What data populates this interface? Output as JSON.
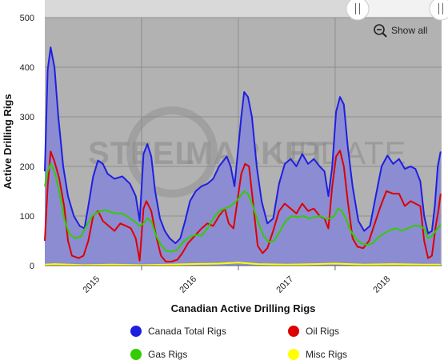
{
  "chart_data": {
    "type": "area",
    "title": "Canadian Active Drilling Rigs",
    "ylabel": "Active Drilling Rigs",
    "xlabel": "",
    "ylim": [
      0,
      500
    ],
    "yticks": [
      0,
      100,
      200,
      300,
      400,
      500
    ],
    "xlim": [
      2014.9,
      2019.0
    ],
    "xticks": [
      {
        "label": "2015",
        "x": 2015.4
      },
      {
        "label": "2016",
        "x": 2016.4
      },
      {
        "label": "2017",
        "x": 2017.4
      },
      {
        "label": "2018",
        "x": 2018.4
      }
    ],
    "x_gridlines": [
      2015.9,
      2016.9,
      2017.9
    ],
    "grid": true,
    "legend_position": "bottom",
    "series": [
      {
        "name": "Canada Total Rigs",
        "color": "#1f1fe0",
        "fill": true,
        "points": [
          [
            2014.9,
            190
          ],
          [
            2014.93,
            395
          ],
          [
            2014.96,
            440
          ],
          [
            2015.0,
            400
          ],
          [
            2015.04,
            300
          ],
          [
            2015.09,
            200
          ],
          [
            2015.14,
            140
          ],
          [
            2015.2,
            100
          ],
          [
            2015.26,
            80
          ],
          [
            2015.31,
            75
          ],
          [
            2015.35,
            120
          ],
          [
            2015.4,
            180
          ],
          [
            2015.45,
            212
          ],
          [
            2015.5,
            205
          ],
          [
            2015.55,
            185
          ],
          [
            2015.62,
            175
          ],
          [
            2015.7,
            180
          ],
          [
            2015.78,
            165
          ],
          [
            2015.84,
            140
          ],
          [
            2015.88,
            90
          ],
          [
            2015.92,
            225
          ],
          [
            2015.96,
            245
          ],
          [
            2016.0,
            220
          ],
          [
            2016.04,
            150
          ],
          [
            2016.09,
            95
          ],
          [
            2016.14,
            70
          ],
          [
            2016.19,
            55
          ],
          [
            2016.25,
            45
          ],
          [
            2016.3,
            55
          ],
          [
            2016.35,
            90
          ],
          [
            2016.4,
            130
          ],
          [
            2016.46,
            150
          ],
          [
            2016.52,
            160
          ],
          [
            2016.58,
            165
          ],
          [
            2016.64,
            175
          ],
          [
            2016.7,
            200
          ],
          [
            2016.78,
            220
          ],
          [
            2016.82,
            200
          ],
          [
            2016.86,
            160
          ],
          [
            2016.9,
            240
          ],
          [
            2016.93,
            300
          ],
          [
            2016.96,
            350
          ],
          [
            2017.0,
            340
          ],
          [
            2017.04,
            300
          ],
          [
            2017.09,
            200
          ],
          [
            2017.14,
            130
          ],
          [
            2017.2,
            85
          ],
          [
            2017.26,
            95
          ],
          [
            2017.32,
            165
          ],
          [
            2017.38,
            205
          ],
          [
            2017.44,
            215
          ],
          [
            2017.5,
            200
          ],
          [
            2017.56,
            225
          ],
          [
            2017.62,
            205
          ],
          [
            2017.68,
            215
          ],
          [
            2017.74,
            200
          ],
          [
            2017.79,
            190
          ],
          [
            2017.83,
            140
          ],
          [
            2017.87,
            200
          ],
          [
            2017.91,
            310
          ],
          [
            2017.95,
            340
          ],
          [
            2017.99,
            325
          ],
          [
            2018.03,
            240
          ],
          [
            2018.08,
            160
          ],
          [
            2018.14,
            90
          ],
          [
            2018.2,
            70
          ],
          [
            2018.26,
            80
          ],
          [
            2018.32,
            140
          ],
          [
            2018.38,
            200
          ],
          [
            2018.44,
            222
          ],
          [
            2018.5,
            205
          ],
          [
            2018.56,
            215
          ],
          [
            2018.62,
            195
          ],
          [
            2018.68,
            200
          ],
          [
            2018.73,
            195
          ],
          [
            2018.78,
            170
          ],
          [
            2018.82,
            100
          ],
          [
            2018.86,
            65
          ],
          [
            2018.9,
            70
          ],
          [
            2018.93,
            120
          ],
          [
            2018.96,
            200
          ],
          [
            2018.99,
            230
          ]
        ]
      },
      {
        "name": "Oil Rigs",
        "color": "#dd0000",
        "fill": false,
        "points": [
          [
            2014.9,
            50
          ],
          [
            2014.93,
            160
          ],
          [
            2014.96,
            230
          ],
          [
            2015.0,
            210
          ],
          [
            2015.05,
            175
          ],
          [
            2015.1,
            120
          ],
          [
            2015.14,
            50
          ],
          [
            2015.18,
            20
          ],
          [
            2015.25,
            15
          ],
          [
            2015.3,
            20
          ],
          [
            2015.35,
            50
          ],
          [
            2015.4,
            100
          ],
          [
            2015.45,
            110
          ],
          [
            2015.5,
            90
          ],
          [
            2015.56,
            80
          ],
          [
            2015.62,
            70
          ],
          [
            2015.68,
            85
          ],
          [
            2015.74,
            80
          ],
          [
            2015.79,
            75
          ],
          [
            2015.84,
            55
          ],
          [
            2015.88,
            10
          ],
          [
            2015.92,
            115
          ],
          [
            2015.95,
            130
          ],
          [
            2016.0,
            110
          ],
          [
            2016.05,
            60
          ],
          [
            2016.1,
            20
          ],
          [
            2016.15,
            8
          ],
          [
            2016.21,
            8
          ],
          [
            2016.27,
            12
          ],
          [
            2016.32,
            25
          ],
          [
            2016.38,
            45
          ],
          [
            2016.45,
            60
          ],
          [
            2016.52,
            75
          ],
          [
            2016.58,
            85
          ],
          [
            2016.64,
            80
          ],
          [
            2016.7,
            100
          ],
          [
            2016.76,
            115
          ],
          [
            2016.8,
            85
          ],
          [
            2016.85,
            75
          ],
          [
            2016.89,
            130
          ],
          [
            2016.93,
            185
          ],
          [
            2016.97,
            205
          ],
          [
            2017.01,
            200
          ],
          [
            2017.05,
            130
          ],
          [
            2017.1,
            40
          ],
          [
            2017.15,
            25
          ],
          [
            2017.2,
            35
          ],
          [
            2017.26,
            70
          ],
          [
            2017.32,
            110
          ],
          [
            2017.38,
            125
          ],
          [
            2017.44,
            115
          ],
          [
            2017.5,
            105
          ],
          [
            2017.56,
            125
          ],
          [
            2017.62,
            110
          ],
          [
            2017.68,
            115
          ],
          [
            2017.74,
            100
          ],
          [
            2017.79,
            95
          ],
          [
            2017.83,
            75
          ],
          [
            2017.87,
            160
          ],
          [
            2017.91,
            220
          ],
          [
            2017.95,
            232
          ],
          [
            2017.99,
            200
          ],
          [
            2018.03,
            130
          ],
          [
            2018.08,
            55
          ],
          [
            2018.13,
            38
          ],
          [
            2018.19,
            35
          ],
          [
            2018.25,
            50
          ],
          [
            2018.31,
            85
          ],
          [
            2018.37,
            120
          ],
          [
            2018.43,
            150
          ],
          [
            2018.5,
            145
          ],
          [
            2018.56,
            145
          ],
          [
            2018.62,
            120
          ],
          [
            2018.68,
            130
          ],
          [
            2018.73,
            125
          ],
          [
            2018.78,
            120
          ],
          [
            2018.82,
            50
          ],
          [
            2018.86,
            15
          ],
          [
            2018.9,
            20
          ],
          [
            2018.94,
            80
          ],
          [
            2018.97,
            115
          ],
          [
            2018.99,
            145
          ]
        ]
      },
      {
        "name": "Gas Rigs",
        "color": "#33cc00",
        "fill": false,
        "points": [
          [
            2014.9,
            160
          ],
          [
            2014.93,
            190
          ],
          [
            2014.96,
            205
          ],
          [
            2015.0,
            190
          ],
          [
            2015.05,
            150
          ],
          [
            2015.1,
            95
          ],
          [
            2015.15,
            65
          ],
          [
            2015.21,
            55
          ],
          [
            2015.27,
            58
          ],
          [
            2015.33,
            80
          ],
          [
            2015.39,
            100
          ],
          [
            2015.45,
            108
          ],
          [
            2015.52,
            112
          ],
          [
            2015.58,
            108
          ],
          [
            2015.64,
            105
          ],
          [
            2015.7,
            105
          ],
          [
            2015.76,
            98
          ],
          [
            2015.82,
            90
          ],
          [
            2015.88,
            80
          ],
          [
            2015.92,
            85
          ],
          [
            2015.96,
            95
          ],
          [
            2016.0,
            90
          ],
          [
            2016.05,
            60
          ],
          [
            2016.1,
            42
          ],
          [
            2016.15,
            30
          ],
          [
            2016.21,
            28
          ],
          [
            2016.27,
            32
          ],
          [
            2016.33,
            48
          ],
          [
            2016.4,
            58
          ],
          [
            2016.46,
            62
          ],
          [
            2016.52,
            60
          ],
          [
            2016.58,
            75
          ],
          [
            2016.64,
            95
          ],
          [
            2016.7,
            110
          ],
          [
            2016.76,
            115
          ],
          [
            2016.82,
            120
          ],
          [
            2016.88,
            130
          ],
          [
            2016.92,
            140
          ],
          [
            2016.96,
            150
          ],
          [
            2017.0,
            145
          ],
          [
            2017.05,
            120
          ],
          [
            2017.1,
            90
          ],
          [
            2017.16,
            60
          ],
          [
            2017.21,
            48
          ],
          [
            2017.27,
            50
          ],
          [
            2017.33,
            70
          ],
          [
            2017.39,
            90
          ],
          [
            2017.45,
            100
          ],
          [
            2017.51,
            98
          ],
          [
            2017.57,
            100
          ],
          [
            2017.63,
            95
          ],
          [
            2017.69,
            98
          ],
          [
            2017.75,
            100
          ],
          [
            2017.8,
            95
          ],
          [
            2017.85,
            95
          ],
          [
            2017.89,
            100
          ],
          [
            2017.93,
            115
          ],
          [
            2017.97,
            110
          ],
          [
            2018.01,
            95
          ],
          [
            2018.06,
            70
          ],
          [
            2018.11,
            55
          ],
          [
            2018.17,
            45
          ],
          [
            2018.23,
            42
          ],
          [
            2018.29,
            45
          ],
          [
            2018.35,
            58
          ],
          [
            2018.41,
            65
          ],
          [
            2018.47,
            72
          ],
          [
            2018.53,
            75
          ],
          [
            2018.59,
            70
          ],
          [
            2018.65,
            75
          ],
          [
            2018.71,
            80
          ],
          [
            2018.77,
            80
          ],
          [
            2018.82,
            75
          ],
          [
            2018.86,
            55
          ],
          [
            2018.9,
            60
          ],
          [
            2018.94,
            70
          ],
          [
            2018.97,
            78
          ],
          [
            2018.99,
            82
          ]
        ]
      },
      {
        "name": "Misc Rigs",
        "color": "#ffff00",
        "fill": false,
        "points": [
          [
            2014.9,
            2
          ],
          [
            2015.0,
            3
          ],
          [
            2015.3,
            1
          ],
          [
            2015.6,
            2
          ],
          [
            2015.9,
            1
          ],
          [
            2016.2,
            2
          ],
          [
            2016.4,
            3
          ],
          [
            2016.7,
            4
          ],
          [
            2016.9,
            6
          ],
          [
            2017.1,
            3
          ],
          [
            2017.4,
            2
          ],
          [
            2017.7,
            3
          ],
          [
            2017.9,
            4
          ],
          [
            2018.2,
            2
          ],
          [
            2018.5,
            3
          ],
          [
            2018.8,
            2
          ],
          [
            2018.99,
            2
          ]
        ]
      }
    ]
  },
  "controls": {
    "show_all_label": "Show all",
    "zoom_icon": "zoom-out-magnifier-icon",
    "navigator_handle_icon": "double-bar-handle-icon"
  },
  "watermark": {
    "text_left": "STEEL",
    "text_mid": "MARKET",
    "text_right": "UPDATE"
  },
  "colors": {
    "plot_background": "#b2b2b2",
    "total_fill": "#8c8cd2",
    "gridline": "#8e8e8e"
  }
}
